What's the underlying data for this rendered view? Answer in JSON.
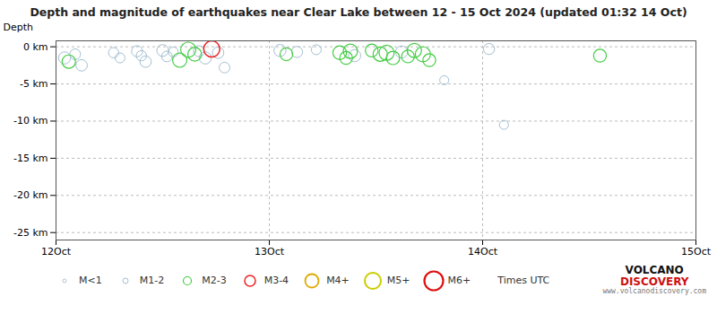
{
  "chart_data": {
    "type": "scatter",
    "title": "Depth and magnitude of earthquakes near Clear Lake between 12 - 15 Oct 2024 (updated 01:32 14 Oct)",
    "y_label": "Depth",
    "xlim": [
      0,
      3
    ],
    "xticks": [
      {
        "value": 0,
        "label": "12Oct"
      },
      {
        "value": 1,
        "label": "13Oct"
      },
      {
        "value": 2,
        "label": "14Oct"
      },
      {
        "value": 3,
        "label": "15Oct"
      }
    ],
    "ylim": [
      -26,
      0.8
    ],
    "yticks": [
      {
        "value": 0,
        "label": "0 km"
      },
      {
        "value": -5,
        "label": "-5 km"
      },
      {
        "value": -10,
        "label": "-10 km"
      },
      {
        "value": -15,
        "label": "-15 km"
      },
      {
        "value": -20,
        "label": "-20 km"
      },
      {
        "value": -25,
        "label": "-25 km"
      }
    ],
    "grid": true,
    "legend": "bottom",
    "series": [
      {
        "name": "M<1",
        "color": "#9ab8cc",
        "x": [],
        "values": [],
        "magnitude": []
      },
      {
        "name": "M1-2",
        "color": "#9ab8cc",
        "x": [
          0.04,
          0.09,
          0.12,
          0.27,
          0.3,
          0.38,
          0.4,
          0.42,
          0.5,
          0.52,
          0.55,
          0.67,
          0.7,
          0.76,
          0.79,
          1.05,
          1.13,
          1.22,
          1.4,
          1.62,
          1.82,
          2.03,
          2.1
        ],
        "values": [
          -1.5,
          -1.0,
          -2.5,
          -0.8,
          -1.5,
          -0.6,
          -1.2,
          -2.0,
          -0.5,
          -1.3,
          -0.7,
          -0.6,
          -1.5,
          -0.8,
          -2.8,
          -0.5,
          -0.7,
          -0.4,
          -1.2,
          -0.7,
          -4.5,
          -0.3,
          -10.5
        ],
        "magnitude": [
          1.8,
          1.4,
          1.6,
          1.3,
          1.2,
          1.5,
          1.3,
          1.6,
          1.7,
          1.4,
          1.2,
          1.5,
          1.8,
          1.6,
          1.4,
          1.8,
          1.5,
          1.2,
          1.8,
          1.8,
          1.0,
          1.5,
          1.0
        ]
      },
      {
        "name": "M2-3",
        "color": "#44cc44",
        "x": [
          0.06,
          0.58,
          0.62,
          0.65,
          1.08,
          1.33,
          1.36,
          1.38,
          1.48,
          1.52,
          1.55,
          1.58,
          1.65,
          1.68,
          1.72,
          1.75,
          2.55
        ],
        "values": [
          -2.0,
          -1.8,
          -0.4,
          -1.0,
          -1.0,
          -0.8,
          -1.5,
          -0.6,
          -0.5,
          -1.0,
          -0.8,
          -1.5,
          -1.3,
          -0.5,
          -1.0,
          -1.8,
          -1.2
        ],
        "magnitude": [
          2.2,
          2.5,
          2.8,
          2.3,
          2.0,
          2.3,
          2.0,
          2.5,
          2.0,
          2.5,
          2.8,
          2.2,
          2.0,
          2.5,
          2.8,
          2.0,
          2.0
        ]
      },
      {
        "name": "M3-4",
        "color": "#ee2222",
        "x": [
          0.73
        ],
        "values": [
          -0.3
        ],
        "magnitude": [
          3.2
        ]
      },
      {
        "name": "M4+",
        "color": "#ddaa00",
        "x": [],
        "values": [],
        "magnitude": []
      },
      {
        "name": "M5+",
        "color": "#cccc00",
        "x": [],
        "values": [],
        "magnitude": []
      },
      {
        "name": "M6+",
        "color": "#dd1111",
        "x": [],
        "values": [],
        "magnitude": []
      }
    ],
    "annotations": [
      "Times UTC",
      "VOLCANO",
      "DISCOVERY",
      "www.volcanodiscovery.com"
    ]
  }
}
